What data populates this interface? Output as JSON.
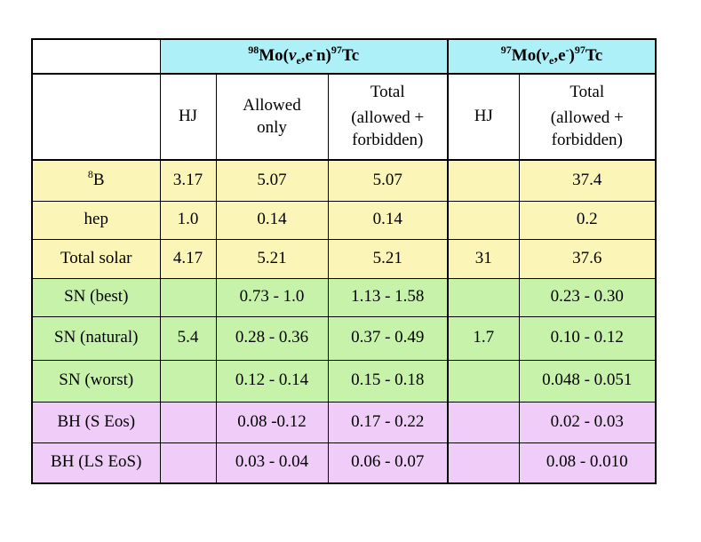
{
  "header": {
    "reaction1": {
      "a_mass": "98",
      "a_el": "Mo(",
      "nu": "ν",
      "nu_sub": "e",
      "mid": ",e",
      "mid_sup": "-",
      "end": "n)",
      "b_mass": "97",
      "b_el": "Tc"
    },
    "reaction2": {
      "a_mass": "97",
      "a_el": "Mo(",
      "nu": "ν",
      "nu_sub": "e",
      "mid": ",e",
      "mid_sup": "-",
      "end": ")",
      "b_mass": "97",
      "b_el": "Tc"
    }
  },
  "subheader": {
    "hj1": "HJ",
    "allowed_l1": "Allowed",
    "allowed_l2": "only",
    "total1_l1": "Total",
    "total1_l2": "(allowed +",
    "total1_l3": "forbidden)",
    "hj2": "HJ",
    "total2_l1": "Total",
    "total2_l2": "(allowed +",
    "total2_l3": "forbidden)"
  },
  "rows": [
    {
      "label": "",
      "label_sup": "8",
      "label_main": "B",
      "hj1": "3.17",
      "allowed": "5.07",
      "total1": "5.07",
      "hj2": "",
      "total2": "37.4",
      "color": "yellow"
    },
    {
      "label": "hep",
      "hj1": "1.0",
      "allowed": "0.14",
      "total1": "0.14",
      "hj2": "",
      "total2": "0.2",
      "color": "yellow"
    },
    {
      "label": "Total solar",
      "hj1": "4.17",
      "allowed": "5.21",
      "total1": "5.21",
      "hj2": "31",
      "total2": "37.6",
      "color": "yellow"
    },
    {
      "label": "SN (best)",
      "hj1": "",
      "allowed": "0.73 - 1.0",
      "total1": "1.13 - 1.58",
      "hj2": "",
      "total2": "0.23 - 0.30",
      "color": "green"
    },
    {
      "label": "SN (natural)",
      "hj1": "5.4",
      "allowed": "0.28 - 0.36",
      "total1": "0.37 - 0.49",
      "hj2": "1.7",
      "total2": "0.10 - 0.12",
      "color": "green"
    },
    {
      "label": "SN (worst)",
      "hj1": "",
      "allowed": "0.12 - 0.14",
      "total1": "0.15 - 0.18",
      "hj2": "",
      "total2": "0.048 - 0.051",
      "color": "green"
    },
    {
      "label": "BH (S Eos)",
      "hj1": "",
      "allowed": "0.08  -0.12",
      "total1": "0.17 - 0.22",
      "hj2": "",
      "total2": "0.02 - 0.03",
      "color": "pink"
    },
    {
      "label": "BH (LS EoS)",
      "hj1": "",
      "allowed": "0.03 - 0.04",
      "total1": "0.06 - 0.07",
      "hj2": "",
      "total2": "0.08 - 0.010",
      "color": "pink"
    }
  ],
  "colors": {
    "cyan": "#aef0f8",
    "yellow": "#fbf5b8",
    "green": "#c6f3a9",
    "pink": "#efcdf8"
  }
}
